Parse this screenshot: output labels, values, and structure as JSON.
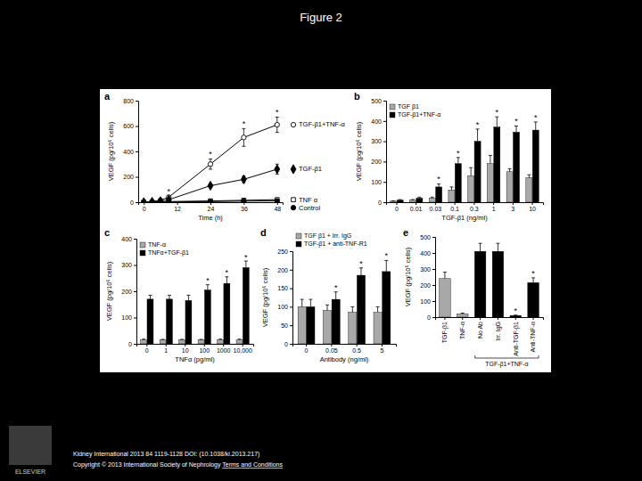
{
  "header": {
    "title": "Figure 2"
  },
  "footer": {
    "citation": "Kidney International 2013 84 1119-1128 DOI: (10.1038/ki.2013.217)",
    "copyright": "Copyright © 2013 International Society of Nephrology",
    "link": "Terms and Conditions",
    "logo": "ELSEVIER"
  },
  "chart_data": [
    {
      "type": "line",
      "panel": "a",
      "x_label": "Time (h)",
      "y_label": "VEGF (pg/10⁵ cells)",
      "x": [
        0,
        3,
        6,
        9,
        24,
        36,
        48
      ],
      "xlim": [
        -2,
        50
      ],
      "xticks": [
        0,
        12,
        24,
        36,
        48
      ],
      "ylim": [
        0,
        800
      ],
      "yticks": [
        0,
        200,
        400,
        600,
        800
      ],
      "legend": "right",
      "series": [
        {
          "name": "TGF-β1+TNF-α",
          "color": "#000000",
          "marker": "open-circle",
          "values": [
            0,
            5,
            15,
            40,
            300,
            510,
            610
          ],
          "errors": [
            0,
            0,
            5,
            10,
            40,
            70,
            60
          ]
        },
        {
          "name": "TGF-β1",
          "color": "#000000",
          "marker": "diamond",
          "values": [
            0,
            3,
            8,
            20,
            130,
            180,
            260
          ],
          "errors": [
            0,
            0,
            3,
            5,
            12,
            25,
            40
          ]
        },
        {
          "name": "TNF α",
          "color": "#000000",
          "marker": "open-square",
          "values": [
            0,
            0,
            0,
            5,
            10,
            15,
            20
          ],
          "errors": [
            0,
            0,
            0,
            0,
            2,
            3,
            4
          ]
        },
        {
          "name": "Control",
          "color": "#000000",
          "marker": "circle",
          "values": [
            0,
            0,
            0,
            2,
            5,
            8,
            10
          ],
          "errors": [
            0,
            0,
            0,
            0,
            1,
            2,
            2
          ]
        }
      ],
      "annotations": [
        {
          "text": "*",
          "x": 9,
          "y": 60
        },
        {
          "text": "*",
          "x": 24,
          "y": 355
        },
        {
          "text": "*",
          "x": 36,
          "y": 595
        },
        {
          "text": "*",
          "x": 48,
          "y": 685
        }
      ]
    },
    {
      "type": "bar",
      "panel": "b",
      "x_label": "TGF-β1 (ng/ml)",
      "y_label": "VEGF (pg/10⁵ cells)",
      "categories": [
        "0",
        "0.01",
        "0.03",
        "0.1",
        "0.3",
        "1",
        "3",
        "10"
      ],
      "ylim": [
        0,
        500
      ],
      "yticks": [
        0,
        100,
        200,
        300,
        400,
        500
      ],
      "legend": "top-left",
      "series": [
        {
          "name": "TGF β1",
          "color": "#a8a8a8",
          "values": [
            5,
            10,
            20,
            60,
            130,
            190,
            150,
            120
          ],
          "errors": [
            2,
            3,
            5,
            15,
            40,
            40,
            15,
            15
          ]
        },
        {
          "name": "TGF-β1+TNF-α",
          "color": "#000000",
          "values": [
            10,
            20,
            75,
            190,
            300,
            370,
            345,
            355
          ],
          "errors": [
            3,
            5,
            15,
            30,
            60,
            50,
            30,
            40
          ]
        }
      ],
      "annotations": [
        {
          "text": "*",
          "x": 2,
          "y": 100
        },
        {
          "text": "*",
          "x": 3,
          "y": 230
        },
        {
          "text": "*",
          "x": 4,
          "y": 370
        },
        {
          "text": "*",
          "x": 5,
          "y": 430
        },
        {
          "text": "*",
          "x": 6,
          "y": 385
        },
        {
          "text": "*",
          "x": 7,
          "y": 405
        }
      ]
    },
    {
      "type": "bar",
      "panel": "c",
      "x_label": "TNFα (pg/ml)",
      "y_label": "VEGF (pg/10⁵ cells)",
      "categories": [
        "0",
        "1",
        "10",
        "100",
        "1000",
        "10,000"
      ],
      "ylim": [
        0,
        400
      ],
      "yticks": [
        0,
        100,
        200,
        300,
        400
      ],
      "legend": "top-left",
      "series": [
        {
          "name": "TNF-α",
          "color": "#a8a8a8",
          "values": [
            15,
            15,
            15,
            15,
            15,
            15
          ],
          "errors": [
            3,
            2,
            2,
            2,
            3,
            3
          ]
        },
        {
          "name": "TNFα+TGF-β1",
          "color": "#000000",
          "values": [
            170,
            170,
            165,
            205,
            230,
            290
          ],
          "errors": [
            15,
            15,
            20,
            20,
            25,
            25
          ]
        }
      ],
      "annotations": [
        {
          "text": "*",
          "x": 3,
          "y": 230
        },
        {
          "text": "*",
          "x": 4,
          "y": 260
        },
        {
          "text": "*",
          "x": 5,
          "y": 320
        }
      ]
    },
    {
      "type": "bar",
      "panel": "d",
      "x_label": "Antibody (ng/ml)",
      "y_label": "VEGF (pg/10⁵ cells)",
      "categories": [
        "0",
        "0.05",
        "0.5",
        "5"
      ],
      "ylim": [
        0,
        250
      ],
      "yticks": [
        0,
        50,
        100,
        150,
        200,
        250
      ],
      "legend": "top",
      "series": [
        {
          "name": "TGF β1 + Irr. IgG",
          "color": "#a8a8a8",
          "values": [
            100,
            90,
            85,
            85
          ],
          "errors": [
            20,
            15,
            15,
            15
          ]
        },
        {
          "name": "TGF-β1 + anti-TNF-R1",
          "color": "#000000",
          "values": [
            100,
            120,
            185,
            195
          ],
          "errors": [
            20,
            20,
            20,
            30
          ]
        }
      ],
      "annotations": [
        {
          "text": "*",
          "x": 1,
          "y": 145
        },
        {
          "text": "*",
          "x": 2,
          "y": 210
        },
        {
          "text": "*",
          "x": 3,
          "y": 230
        }
      ]
    },
    {
      "type": "bar",
      "panel": "e",
      "y_label": "VEGF (pg/10⁵ cells)",
      "categories": [
        "TGF-β1",
        "TNF-α",
        "No Ab",
        "Irr. IgG",
        "Anti-TGF-β1",
        "Anti-TNF-α"
      ],
      "values": [
        240,
        20,
        410,
        410,
        10,
        215
      ],
      "errors": [
        40,
        5,
        50,
        50,
        3,
        30
      ],
      "colors": [
        "#a8a8a8",
        "#a8a8a8",
        "#000000",
        "#000000",
        "#000000",
        "#000000"
      ],
      "ylim": [
        0,
        500
      ],
      "yticks": [
        0,
        100,
        200,
        300,
        400,
        500
      ],
      "bracket": {
        "text": "TGF-β1+TNF-α",
        "from": 2,
        "to": 5
      },
      "annotations": [
        {
          "text": "*",
          "x": 4,
          "y": 25
        },
        {
          "text": "*",
          "x": 5,
          "y": 255
        }
      ]
    }
  ]
}
